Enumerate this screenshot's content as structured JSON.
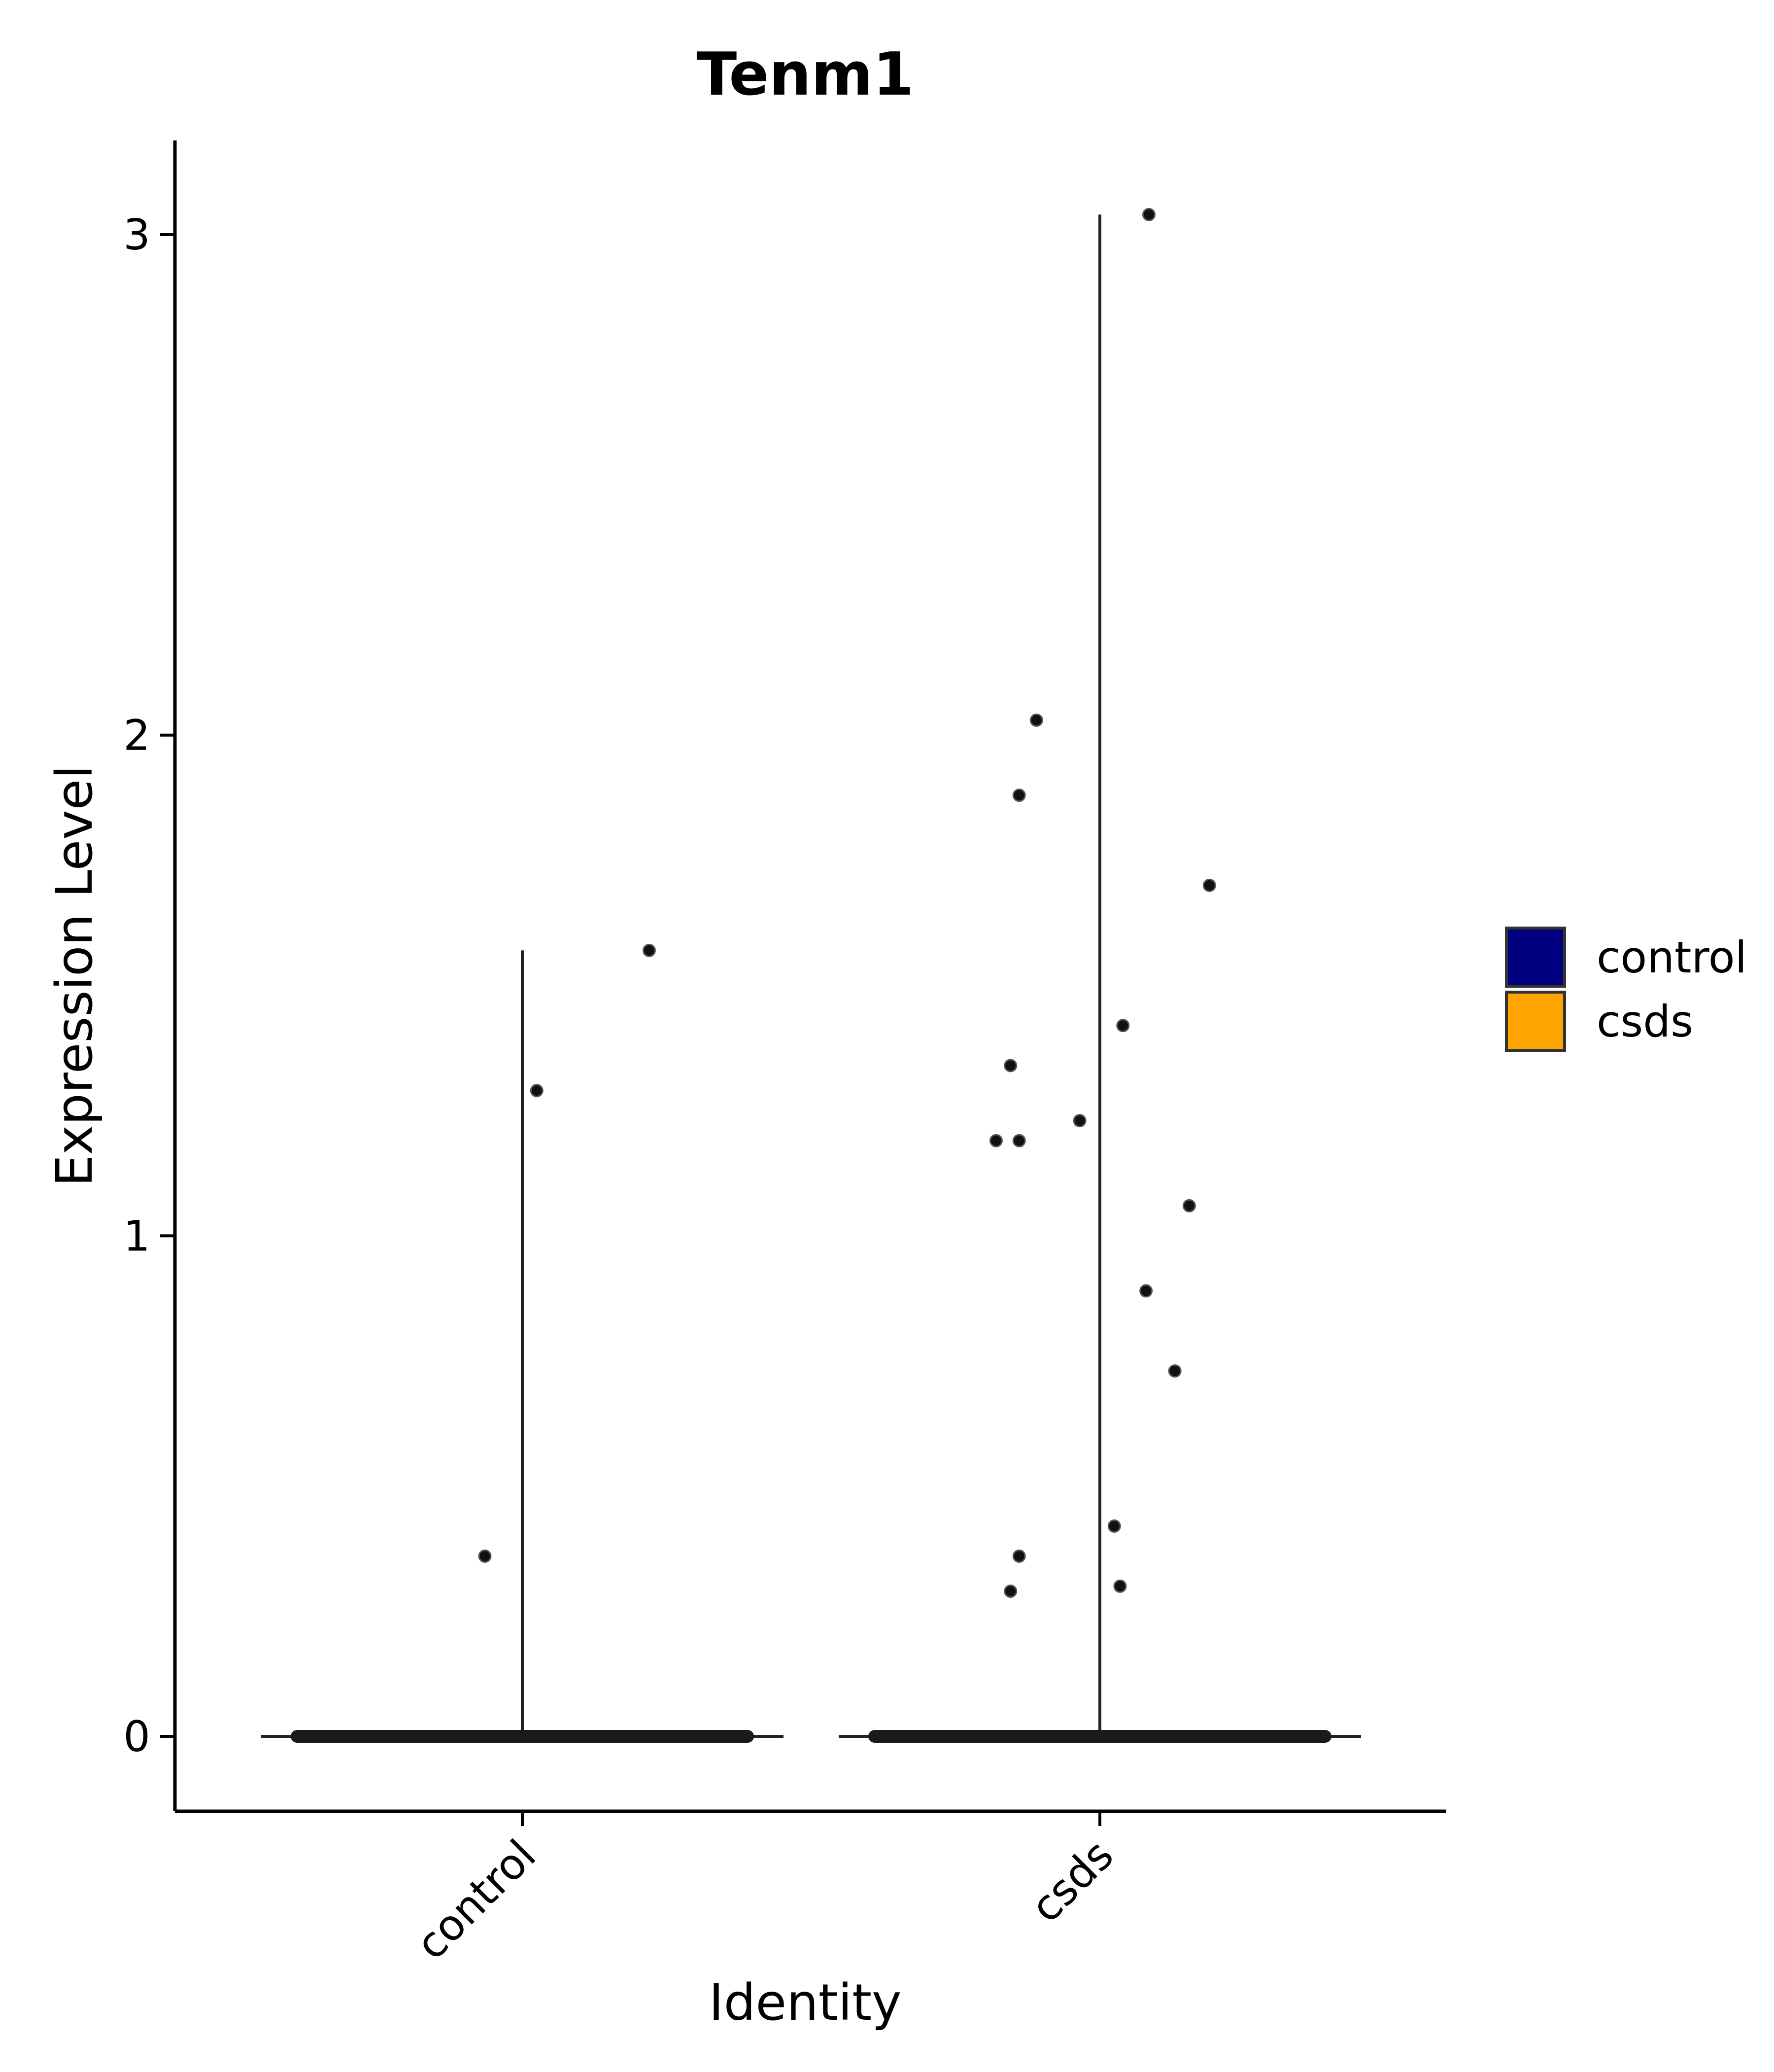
{
  "chart_data": {
    "type": "violin",
    "title": "Tenm1",
    "xlabel": "Identity",
    "ylabel": "Expression Level",
    "categories": [
      "control",
      "csds"
    ],
    "ylim": [
      -0.15,
      3.2
    ],
    "yticks": [
      0,
      1,
      2,
      3
    ],
    "ytick_labels": [
      "0",
      "1",
      "2",
      "3"
    ],
    "grid": false,
    "legend": {
      "position": "right",
      "entries": [
        {
          "label": "control",
          "color": "#000080"
        },
        {
          "label": "csds",
          "color": "#FFA500"
        }
      ]
    },
    "series": [
      {
        "category": "control",
        "color": "#000080",
        "max": 1.57,
        "outliers": [
          {
            "x": 0.44,
            "y": 1.57
          },
          {
            "x": 0.05,
            "y": 1.29
          },
          {
            "x": -0.13,
            "y": 0.36
          }
        ]
      },
      {
        "category": "csds",
        "color": "#FFA500",
        "max": 3.04,
        "outliers": [
          {
            "x": 0.17,
            "y": 3.04
          },
          {
            "x": -0.22,
            "y": 2.03
          },
          {
            "x": -0.28,
            "y": 1.88
          },
          {
            "x": 0.38,
            "y": 1.7
          },
          {
            "x": 0.08,
            "y": 1.42
          },
          {
            "x": -0.31,
            "y": 1.34
          },
          {
            "x": -0.07,
            "y": 1.23
          },
          {
            "x": -0.36,
            "y": 1.19
          },
          {
            "x": -0.28,
            "y": 1.19
          },
          {
            "x": 0.31,
            "y": 1.06
          },
          {
            "x": 0.16,
            "y": 0.89
          },
          {
            "x": 0.26,
            "y": 0.73
          },
          {
            "x": 0.05,
            "y": 0.42
          },
          {
            "x": -0.28,
            "y": 0.36
          },
          {
            "x": -0.31,
            "y": 0.29
          },
          {
            "x": 0.07,
            "y": 0.3
          }
        ]
      }
    ]
  }
}
